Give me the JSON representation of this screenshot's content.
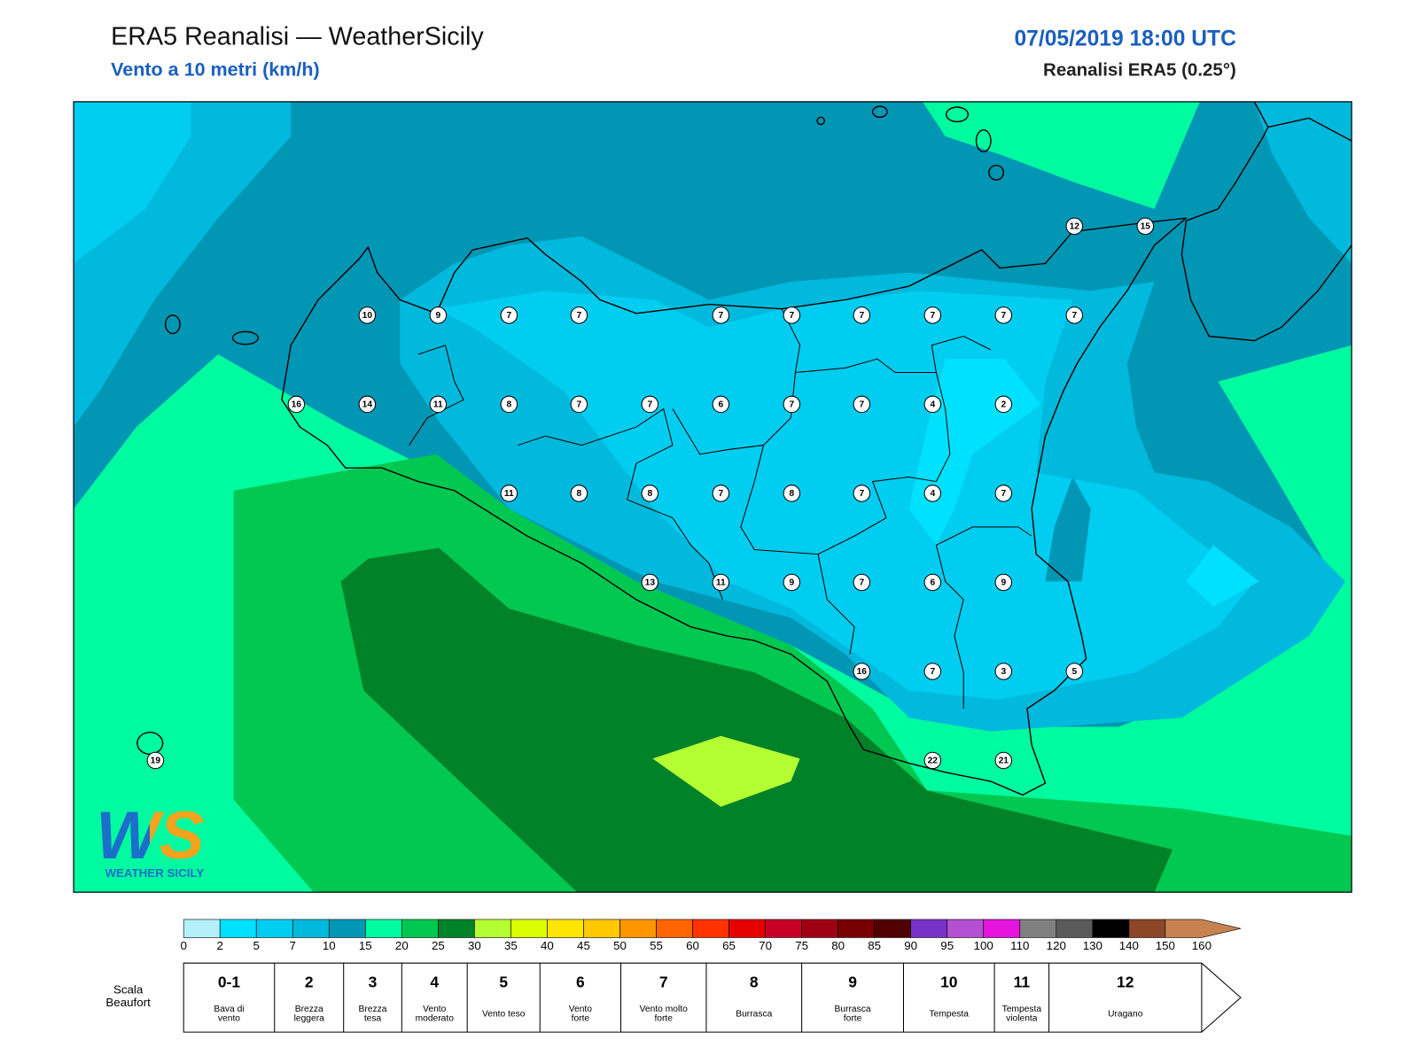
{
  "header": {
    "title": "ERA5 Reanalisi — WeatherSicily",
    "subtitle": "Vento a 10 metri (km/h)",
    "date": "07/05/2019 18:00 UTC",
    "source": "Reanalisi ERA5 (0.25°)"
  },
  "stations": [
    12,
    15,
    10,
    9,
    7,
    7,
    7,
    7,
    7,
    7,
    7,
    7,
    16,
    14,
    11,
    8,
    7,
    7,
    6,
    7,
    7,
    4,
    2,
    11,
    8,
    8,
    7,
    8,
    7,
    4,
    7,
    13,
    11,
    9,
    7,
    6,
    9,
    16,
    7,
    3,
    5,
    19,
    22,
    21
  ],
  "logo": {
    "mark": "WS",
    "name": "WEATHER SICILY"
  },
  "colorbar": {
    "ticks": [
      0,
      2,
      5,
      7,
      10,
      15,
      20,
      25,
      30,
      35,
      40,
      45,
      50,
      55,
      60,
      65,
      70,
      75,
      80,
      85,
      90,
      95,
      100,
      110,
      120,
      130,
      140,
      150,
      160
    ],
    "colors": [
      "#b4f0fa",
      "#00e0ff",
      "#00cdf0",
      "#00b9dc",
      "#0096b4",
      "#00faa0",
      "#00c850",
      "#008228",
      "#b4ff32",
      "#dcff00",
      "#ffe600",
      "#ffc800",
      "#ff9600",
      "#ff6400",
      "#ff3200",
      "#e60000",
      "#c80028",
      "#a00014",
      "#780000",
      "#500000",
      "#7832c8",
      "#b450d2",
      "#e614dc",
      "#808080",
      "#5a5a5a",
      "#000000",
      "#8c4628",
      "#c88250"
    ]
  },
  "beaufort": {
    "label": [
      "Scala",
      "Beaufort"
    ],
    "levels": [
      {
        "force": "0-1",
        "desc": [
          "Bava di",
          "vento"
        ]
      },
      {
        "force": 2,
        "desc": [
          "Brezza",
          "leggera"
        ]
      },
      {
        "force": 3,
        "desc": [
          "Brezza",
          "tesa"
        ]
      },
      {
        "force": 4,
        "desc": [
          "Vento",
          "moderato"
        ]
      },
      {
        "force": 5,
        "desc": [
          "Vento teso"
        ]
      },
      {
        "force": 6,
        "desc": [
          "Vento",
          "forte"
        ]
      },
      {
        "force": 7,
        "desc": [
          "Vento molto",
          "forte"
        ]
      },
      {
        "force": 8,
        "desc": [
          "Burrasca"
        ]
      },
      {
        "force": 9,
        "desc": [
          "Burrasca",
          "forte"
        ]
      },
      {
        "force": 10,
        "desc": [
          "Tempesta"
        ]
      },
      {
        "force": 11,
        "desc": [
          "Tempesta",
          "violenta"
        ]
      },
      {
        "force": 12,
        "desc": [
          "Uragano"
        ]
      }
    ]
  }
}
